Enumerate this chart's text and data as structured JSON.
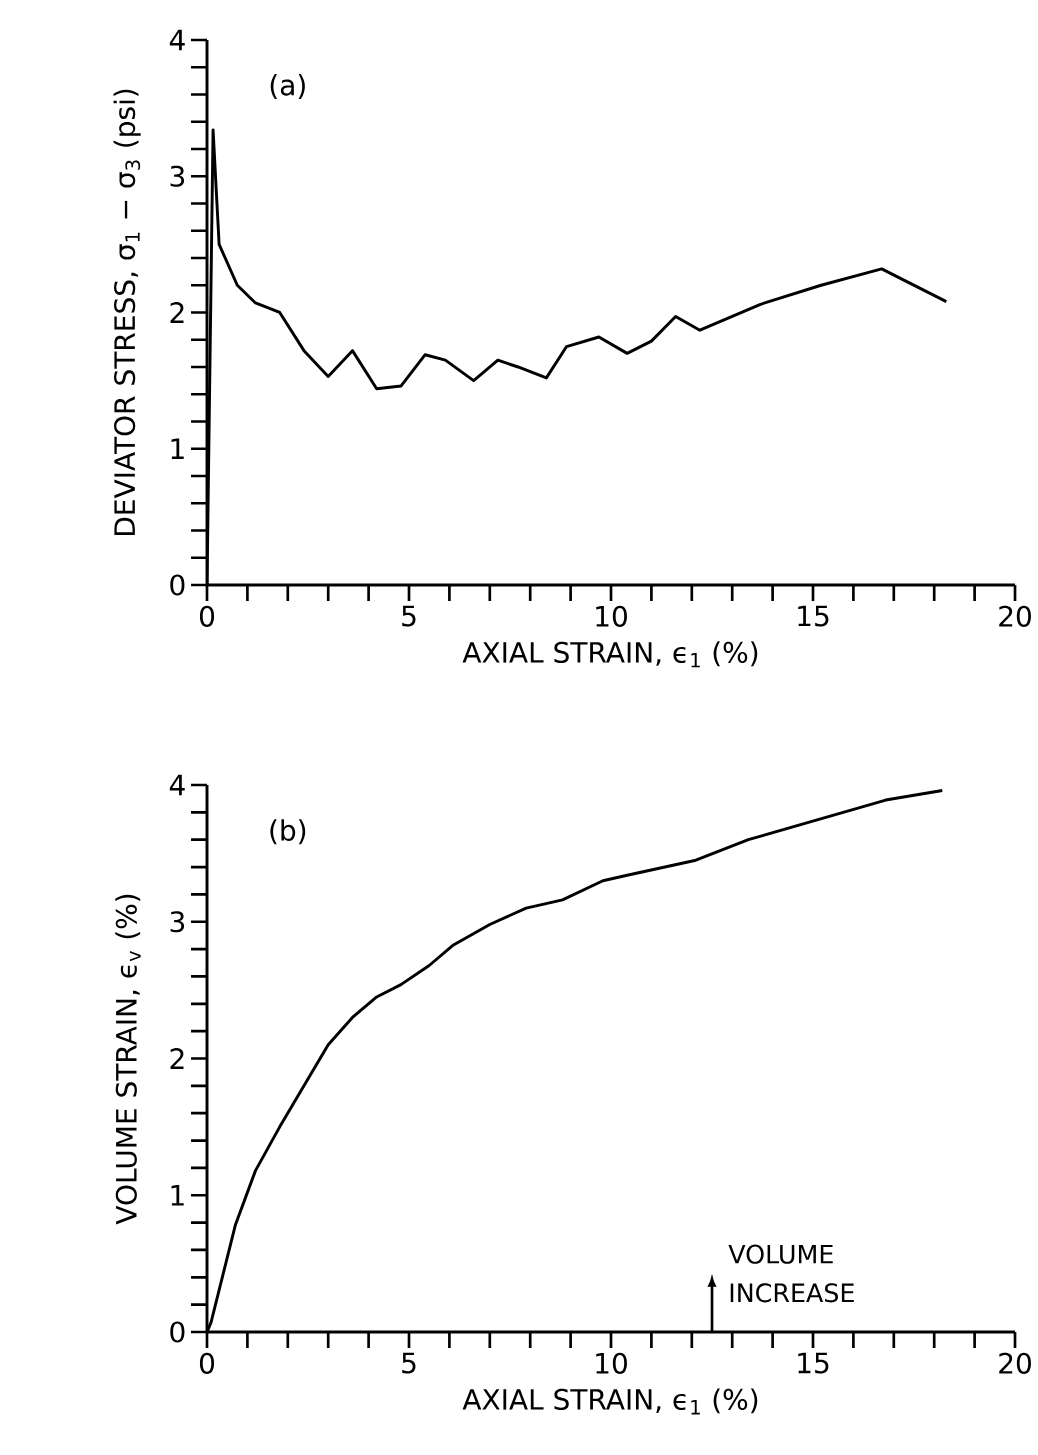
{
  "chart_data": [
    {
      "type": "line",
      "title": "(a)",
      "xlabel": "AXIAL  STRAIN,  ϵ$_{1}$  (%)",
      "ylabel": "DEVIATOR  STRESS,  σ$_{1}$ − σ$_{3}$ (psi)",
      "x": [
        0,
        0.15,
        0.3,
        0.75,
        1.2,
        1.8,
        2.4,
        3.0,
        3.6,
        4.2,
        4.8,
        5.4,
        5.9,
        6.6,
        7.2,
        7.7,
        8.4,
        8.9,
        9.7,
        10.4,
        11.0,
        11.6,
        12.2,
        13.7,
        15.2,
        16.7,
        18.3
      ],
      "series": [
        {
          "color": "#000000",
          "values": [
            0,
            3.34,
            2.5,
            2.2,
            2.07,
            2.0,
            1.72,
            1.53,
            1.72,
            1.44,
            1.46,
            1.69,
            1.65,
            1.5,
            1.65,
            1.6,
            1.52,
            1.75,
            1.82,
            1.7,
            1.79,
            1.97,
            1.87,
            2.06,
            2.2,
            2.32,
            2.08
          ]
        }
      ],
      "xlim": [
        0,
        20
      ],
      "ylim": [
        0,
        4
      ],
      "xticks": [
        0,
        5,
        10,
        15,
        20
      ],
      "yticks": [
        0,
        1,
        2,
        3,
        4
      ],
      "grid": false,
      "marker": "none",
      "line_style": "solid"
    },
    {
      "type": "line",
      "title": "(b)",
      "xlabel": "AXIAL  STRAIN,  ϵ$_{1}$  (%)",
      "ylabel": "VOLUME  STRAIN,  ϵ$_{v}$  (%)",
      "x": [
        0,
        0.1,
        0.7,
        1.2,
        1.8,
        3.0,
        3.6,
        4.2,
        4.8,
        5.5,
        6.1,
        7.0,
        7.9,
        8.8,
        9.8,
        10.4,
        12.1,
        13.4,
        16.8,
        18.2
      ],
      "series": [
        {
          "color": "#000000",
          "values": [
            0,
            0.07,
            0.78,
            1.18,
            1.5,
            2.1,
            2.3,
            2.45,
            2.54,
            2.68,
            2.83,
            2.98,
            3.1,
            3.16,
            3.3,
            3.34,
            3.45,
            3.6,
            3.89,
            3.96
          ]
        }
      ],
      "xlim": [
        0,
        20
      ],
      "ylim": [
        0,
        4
      ],
      "xticks": [
        0,
        5,
        10,
        15,
        20
      ],
      "yticks": [
        0,
        1,
        2,
        3,
        4
      ],
      "grid": false,
      "marker": "none",
      "line_style": "solid",
      "annotations": [
        "VOLUME INCREASE"
      ]
    }
  ]
}
